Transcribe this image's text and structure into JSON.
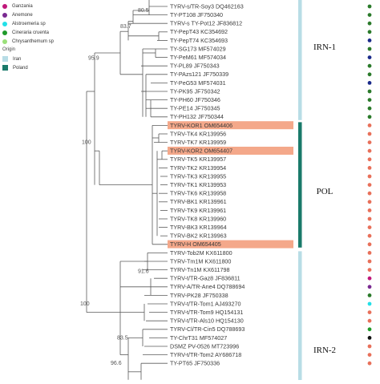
{
  "legend": {
    "host_items": [
      {
        "label": "Ganzania",
        "color": "#c0177a"
      },
      {
        "label": "Anemone",
        "color": "#7a2a91"
      },
      {
        "label": "Alstroemeria sp",
        "color": "#22e0e8"
      },
      {
        "label": "Cineraria cruenta",
        "color": "#1f9a2a"
      },
      {
        "label": "Chrysanthemum sp",
        "color": "#9be07a"
      }
    ],
    "origin_title": "Origin",
    "origin_items": [
      {
        "label": "Iran",
        "color": "#b8dde6"
      },
      {
        "label": "Poland",
        "color": "#1a7a6a"
      }
    ]
  },
  "clades": [
    {
      "label": "IRN-1",
      "bar_color": "#b8dde6"
    },
    {
      "label": "POL",
      "bar_color": "#1a7a6a"
    },
    {
      "label": "IRN-2",
      "bar_color": "#b8dde6"
    }
  ],
  "highlight_color": "#f4a88a",
  "taxa": [
    {
      "label": "TYRV-s/TR-Soy3 DQ462163",
      "highlight": false,
      "dot": "#2a7a2a"
    },
    {
      "label": "TY-PT108 JF750340",
      "highlight": false,
      "dot": "#2a7a2a"
    },
    {
      "label": "TYRV-s TY-Pot12 JF836812",
      "highlight": false,
      "dot": "#2a7a2a"
    },
    {
      "label": "TY-PepT43 KC354692",
      "highlight": false,
      "dot": "#2a7a2a"
    },
    {
      "label": "TY-PepT74 KC354693",
      "highlight": false,
      "dot": "#1a2a8a"
    },
    {
      "label": "TY-SG173 MF574029",
      "highlight": false,
      "dot": "#2a7a2a"
    },
    {
      "label": "TY-PeM61 MF574034",
      "highlight": false,
      "dot": "#1a2a8a"
    },
    {
      "label": "TY-PL89 JF750343",
      "highlight": false,
      "dot": "#2a7a2a"
    },
    {
      "label": "TY-PAzs121 JF750339",
      "highlight": false,
      "dot": "#2a7a2a"
    },
    {
      "label": "TY-PeG53 MF574031",
      "highlight": false,
      "dot": "#1a2a8a"
    },
    {
      "label": "TY-PK95 JF750342",
      "highlight": false,
      "dot": "#2a7a2a"
    },
    {
      "label": "TY-PH60 JF750346",
      "highlight": false,
      "dot": "#2a7a2a"
    },
    {
      "label": "TY-PE14 JF750345",
      "highlight": false,
      "dot": "#2a7a2a"
    },
    {
      "label": "TY-PH132 JF750344",
      "highlight": false,
      "dot": "#2a7a2a"
    },
    {
      "label": "TYRV-KOR1 OM654406",
      "highlight": true,
      "dot": "#e8705a"
    },
    {
      "label": "TYRV-TK4 KR139956",
      "highlight": false,
      "dot": "#e8705a"
    },
    {
      "label": "TYRV-TK7 KR139959",
      "highlight": false,
      "dot": "#e8705a"
    },
    {
      "label": "TYRV-KOR2 OM654407",
      "highlight": true,
      "dot": "#e8705a"
    },
    {
      "label": "TYRV-TK5 KR139957",
      "highlight": false,
      "dot": "#e8705a"
    },
    {
      "label": "TYRV-TK2 KR139954",
      "highlight": false,
      "dot": "#e8705a"
    },
    {
      "label": "TYRV-TK3 KR139955",
      "highlight": false,
      "dot": "#e8705a"
    },
    {
      "label": "TYRV-TK1 KR139953",
      "highlight": false,
      "dot": "#e8705a"
    },
    {
      "label": "TYRV-TK6 KR139958",
      "highlight": false,
      "dot": "#e8705a"
    },
    {
      "label": "TYRV-BK1 KR139961",
      "highlight": false,
      "dot": "#e8705a"
    },
    {
      "label": "TYRV-TK9 KR139961",
      "highlight": false,
      "dot": "#e8705a"
    },
    {
      "label": "TYRV-TK8 KR139960",
      "highlight": false,
      "dot": "#e8705a"
    },
    {
      "label": "TYRV-BK3 KR139964",
      "highlight": false,
      "dot": "#e8705a"
    },
    {
      "label": "TYRV-BK2 KR139963",
      "highlight": false,
      "dot": "#e8705a"
    },
    {
      "label": "TYRV-H OM654405",
      "highlight": true,
      "dot": "#e8705a"
    },
    {
      "label": "TYRV-Tob2M KX611800",
      "highlight": false,
      "dot": "#e8705a"
    },
    {
      "label": "TYRV-Tm1M KX611800",
      "highlight": false,
      "dot": "#e8705a"
    },
    {
      "label": "TYRV-Tn1M KX611798",
      "highlight": false,
      "dot": "#e8705a"
    },
    {
      "label": "TYRV-t/TR-Gaz8 JF836811",
      "highlight": false,
      "dot": "#c0177a"
    },
    {
      "label": "TYRV-A/TR-Ane4 DQ788694",
      "highlight": false,
      "dot": "#7a2a91"
    },
    {
      "label": "TYRV-PK28 JF750338",
      "highlight": false,
      "dot": "#2a7a2a"
    },
    {
      "label": "TYRV-t/TR-Tom1 AJ493270",
      "highlight": false,
      "dot": "#22e0e8"
    },
    {
      "label": "TYRV-t/TR-Tom9 HQ154131",
      "highlight": false,
      "dot": "#e8705a"
    },
    {
      "label": "TYRV-t/TR-Als10 HQ154130",
      "highlight": false,
      "dot": "#e8705a"
    },
    {
      "label": "TYRV-Cl/TR-Cin5 DQ788693",
      "highlight": false,
      "dot": "#1f9a2a"
    },
    {
      "label": "TY-ChrT31 MF574027",
      "highlight": false,
      "dot": "#111111"
    },
    {
      "label": "DSMZ PV-0526 MT723996",
      "highlight": false,
      "dot": "#e8705a"
    },
    {
      "label": "TYRV-t/TR-Tom2 AY686718",
      "highlight": false,
      "dot": "#e8705a"
    },
    {
      "label": "TY-PT65 JF750336",
      "highlight": false,
      "dot": "#e8705a"
    }
  ],
  "bootstrap": [
    {
      "value": "80.5"
    },
    {
      "value": "83.7"
    },
    {
      "value": "95.9"
    },
    {
      "value": "100"
    },
    {
      "value": "91.6"
    },
    {
      "value": "100"
    },
    {
      "value": "83.5"
    },
    {
      "value": "96.6"
    }
  ]
}
